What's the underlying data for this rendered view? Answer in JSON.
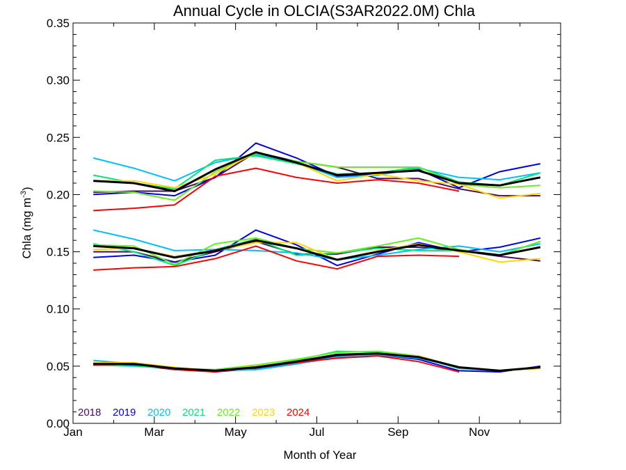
{
  "chart_data": {
    "type": "line",
    "title": "Annual Cycle in OLCIA(S3AR2022.0M) Chla",
    "xlabel": "Month of Year",
    "ylabel_main": "Chla (mg m",
    "ylabel_sup": "-3",
    "ylabel_close": ")",
    "xlim": [
      1,
      13
    ],
    "ylim": [
      0,
      0.35
    ],
    "x_ticks": [
      {
        "value": 1,
        "label": "Jan"
      },
      {
        "value": 3,
        "label": "Mar"
      },
      {
        "value": 5,
        "label": "May"
      },
      {
        "value": 7,
        "label": "Jul"
      },
      {
        "value": 9,
        "label": "Sep"
      },
      {
        "value": 11,
        "label": "Nov"
      }
    ],
    "y_ticks": [
      {
        "value": 0.0,
        "label": "0.00"
      },
      {
        "value": 0.05,
        "label": "0.05"
      },
      {
        "value": 0.1,
        "label": "0.10"
      },
      {
        "value": 0.15,
        "label": "0.15"
      },
      {
        "value": 0.2,
        "label": "0.20"
      },
      {
        "value": 0.25,
        "label": "0.25"
      },
      {
        "value": 0.3,
        "label": "0.30"
      },
      {
        "value": 0.35,
        "label": "0.35"
      }
    ],
    "grid": false,
    "legend_position": "bottom-left",
    "series": [
      {
        "name": "2018",
        "color": "#4b0a5a",
        "lines": [
          {
            "x": [
              1.5,
              2.5,
              3.5,
              4.5,
              5.5,
              6.5,
              7.5,
              8.5,
              9.5,
              10.5,
              11.5,
              12.5
            ],
            "y": [
              0.202,
              0.203,
              0.203,
              0.215,
              0.237,
              0.229,
              0.224,
              0.214,
              0.214,
              0.205,
              0.199,
              0.199
            ]
          },
          {
            "x": [
              1.5,
              2.5,
              3.5,
              4.5,
              5.5,
              6.5,
              7.5,
              8.5,
              9.5,
              10.5,
              11.5,
              12.5
            ],
            "y": [
              0.15,
              0.15,
              0.141,
              0.15,
              0.159,
              0.148,
              0.148,
              0.154,
              0.154,
              0.151,
              0.146,
              0.142
            ]
          },
          {
            "x": [
              1.5,
              2.5,
              3.5,
              4.5,
              5.5,
              6.5,
              7.5,
              8.5,
              9.5,
              10.5,
              11.5,
              12.5
            ],
            "y": [
              0.052,
              0.051,
              0.048,
              0.045,
              0.048,
              0.053,
              0.059,
              0.06,
              0.058,
              0.049,
              0.046,
              0.049
            ]
          }
        ]
      },
      {
        "name": "2019",
        "color": "#0000e6",
        "lines": [
          {
            "x": [
              1.5,
              2.5,
              3.5,
              4.5,
              5.5,
              6.5,
              7.5,
              8.5,
              9.5,
              10.5,
              11.5,
              12.5
            ],
            "y": [
              0.2,
              0.202,
              0.199,
              0.215,
              0.245,
              0.232,
              0.216,
              0.218,
              0.222,
              0.206,
              0.22,
              0.227
            ]
          },
          {
            "x": [
              1.5,
              2.5,
              3.5,
              4.5,
              5.5,
              6.5,
              7.5,
              8.5,
              9.5,
              10.5,
              11.5,
              12.5
            ],
            "y": [
              0.145,
              0.147,
              0.141,
              0.147,
              0.169,
              0.156,
              0.138,
              0.148,
              0.158,
              0.15,
              0.154,
              0.162
            ]
          },
          {
            "x": [
              1.5,
              2.5,
              3.5,
              4.5,
              5.5,
              6.5,
              7.5,
              8.5,
              9.5,
              10.5,
              11.5,
              12.5
            ],
            "y": [
              0.051,
              0.051,
              0.047,
              0.046,
              0.047,
              0.052,
              0.058,
              0.06,
              0.056,
              0.046,
              0.045,
              0.05
            ]
          }
        ]
      },
      {
        "name": "2020",
        "color": "#00bfff",
        "lines": [
          {
            "x": [
              1.5,
              2.5,
              3.5,
              4.5,
              5.5,
              6.5,
              7.5,
              8.5,
              9.5,
              10.5,
              11.5,
              12.5
            ],
            "y": [
              0.232,
              0.223,
              0.212,
              0.228,
              0.235,
              0.228,
              0.215,
              0.217,
              0.223,
              0.215,
              0.213,
              0.219
            ]
          },
          {
            "x": [
              1.5,
              2.5,
              3.5,
              4.5,
              5.5,
              6.5,
              7.5,
              8.5,
              9.5,
              10.5,
              11.5,
              12.5
            ],
            "y": [
              0.169,
              0.161,
              0.151,
              0.152,
              0.151,
              0.149,
              0.143,
              0.147,
              0.152,
              0.155,
              0.15,
              0.157
            ]
          },
          {
            "x": [
              1.5,
              2.5,
              3.5,
              4.5,
              5.5,
              6.5,
              7.5,
              8.5,
              9.5,
              10.5,
              11.5,
              12.5
            ],
            "y": [
              0.055,
              0.052,
              0.048,
              0.046,
              0.047,
              0.052,
              0.058,
              0.06,
              0.057,
              0.049,
              0.046,
              0.049
            ]
          }
        ]
      },
      {
        "name": "2021",
        "color": "#00e676",
        "lines": [
          {
            "x": [
              1.5,
              2.5,
              3.5,
              4.5,
              5.5,
              6.5,
              7.5,
              8.5,
              9.5,
              10.5,
              11.5,
              12.5
            ],
            "y": [
              0.217,
              0.21,
              0.205,
              0.23,
              0.234,
              0.227,
              0.218,
              0.219,
              0.224,
              0.211,
              0.208,
              0.219
            ]
          },
          {
            "x": [
              1.5,
              2.5,
              3.5,
              4.5,
              5.5,
              6.5,
              7.5,
              8.5,
              9.5,
              10.5,
              11.5,
              12.5
            ],
            "y": [
              0.157,
              0.15,
              0.138,
              0.152,
              0.161,
              0.147,
              0.149,
              0.153,
              0.151,
              0.151,
              0.147,
              0.159
            ]
          },
          {
            "x": [
              1.5,
              2.5,
              3.5,
              4.5,
              5.5,
              6.5,
              7.5,
              8.5,
              9.5,
              10.5,
              11.5,
              12.5
            ],
            "y": [
              0.051,
              0.05,
              0.048,
              0.046,
              0.049,
              0.055,
              0.063,
              0.062,
              0.058,
              0.048,
              0.046,
              0.048
            ]
          }
        ]
      },
      {
        "name": "2022",
        "color": "#66ee22",
        "lines": [
          {
            "x": [
              1.5,
              2.5,
              3.5,
              4.5,
              5.5,
              6.5,
              7.5,
              8.5,
              9.5,
              10.5,
              11.5,
              12.5
            ],
            "y": [
              0.203,
              0.202,
              0.195,
              0.22,
              0.236,
              0.229,
              0.224,
              0.224,
              0.224,
              0.209,
              0.206,
              0.208
            ]
          },
          {
            "x": [
              1.5,
              2.5,
              3.5,
              4.5,
              5.5,
              6.5,
              7.5,
              8.5,
              9.5,
              10.5,
              11.5,
              12.5
            ],
            "y": [
              0.156,
              0.155,
              0.139,
              0.157,
              0.162,
              0.153,
              0.149,
              0.155,
              0.162,
              0.152,
              0.147,
              0.159
            ]
          },
          {
            "x": [
              1.5,
              2.5,
              3.5,
              4.5,
              5.5,
              6.5,
              7.5,
              8.5,
              9.5,
              10.5,
              11.5,
              12.5
            ],
            "y": [
              0.051,
              0.052,
              0.048,
              0.047,
              0.051,
              0.056,
              0.062,
              0.063,
              0.059,
              0.049,
              0.046,
              0.048
            ]
          }
        ]
      },
      {
        "name": "2023",
        "color": "#ffd700",
        "lines": [
          {
            "x": [
              1.5,
              2.5,
              3.5,
              4.5,
              5.5,
              6.5,
              7.5,
              8.5,
              9.5,
              10.5,
              11.5,
              12.5
            ],
            "y": [
              0.212,
              0.212,
              0.206,
              0.218,
              0.237,
              0.228,
              0.212,
              0.218,
              0.212,
              0.209,
              0.197,
              0.201
            ]
          },
          {
            "x": [
              1.5,
              2.5,
              3.5,
              4.5,
              5.5,
              6.5,
              7.5,
              8.5,
              9.5,
              10.5,
              11.5,
              12.5
            ],
            "y": [
              0.152,
              0.153,
              0.146,
              0.151,
              0.158,
              0.158,
              0.143,
              0.151,
              0.157,
              0.15,
              0.141,
              0.144
            ]
          },
          {
            "x": [
              1.5,
              2.5,
              3.5,
              4.5,
              5.5,
              6.5,
              7.5,
              8.5,
              9.5,
              10.5,
              11.5,
              12.5
            ],
            "y": [
              0.053,
              0.053,
              0.049,
              0.046,
              0.05,
              0.054,
              0.06,
              0.061,
              0.059,
              0.049,
              0.046,
              0.048
            ]
          }
        ]
      },
      {
        "name": "2024",
        "color": "#ff0000",
        "lines": [
          {
            "x": [
              1.5,
              2.5,
              3.5,
              4.5,
              5.5,
              6.5,
              7.5,
              8.5,
              9.5,
              10.5
            ],
            "y": [
              0.186,
              0.188,
              0.191,
              0.216,
              0.223,
              0.215,
              0.21,
              0.213,
              0.21,
              0.203
            ]
          },
          {
            "x": [
              1.5,
              2.5,
              3.5,
              4.5,
              5.5,
              6.5,
              7.5,
              8.5,
              9.5,
              10.5
            ],
            "y": [
              0.134,
              0.136,
              0.137,
              0.144,
              0.155,
              0.142,
              0.135,
              0.146,
              0.147,
              0.146
            ]
          },
          {
            "x": [
              1.5,
              2.5,
              3.5,
              4.5,
              5.5,
              6.5,
              7.5,
              8.5,
              9.5,
              10.5
            ],
            "y": [
              0.051,
              0.052,
              0.047,
              0.045,
              0.049,
              0.053,
              0.057,
              0.059,
              0.054,
              0.045
            ]
          }
        ]
      }
    ],
    "mean_series": {
      "color": "#000000",
      "lines": [
        {
          "x": [
            1.5,
            2.5,
            3.5,
            4.5,
            5.5,
            6.5,
            7.5,
            8.5,
            9.5,
            10.5,
            11.5,
            12.5
          ],
          "y": [
            0.212,
            0.21,
            0.203,
            0.222,
            0.237,
            0.228,
            0.217,
            0.219,
            0.221,
            0.21,
            0.208,
            0.215
          ]
        },
        {
          "x": [
            1.5,
            2.5,
            3.5,
            4.5,
            5.5,
            6.5,
            7.5,
            8.5,
            9.5,
            10.5,
            11.5,
            12.5
          ],
          "y": [
            0.155,
            0.153,
            0.145,
            0.151,
            0.16,
            0.153,
            0.143,
            0.15,
            0.156,
            0.151,
            0.147,
            0.154
          ]
        },
        {
          "x": [
            1.5,
            2.5,
            3.5,
            4.5,
            5.5,
            6.5,
            7.5,
            8.5,
            9.5,
            10.5,
            11.5,
            12.5
          ],
          "y": [
            0.052,
            0.052,
            0.048,
            0.046,
            0.049,
            0.054,
            0.06,
            0.061,
            0.058,
            0.049,
            0.046,
            0.049
          ]
        }
      ]
    }
  }
}
